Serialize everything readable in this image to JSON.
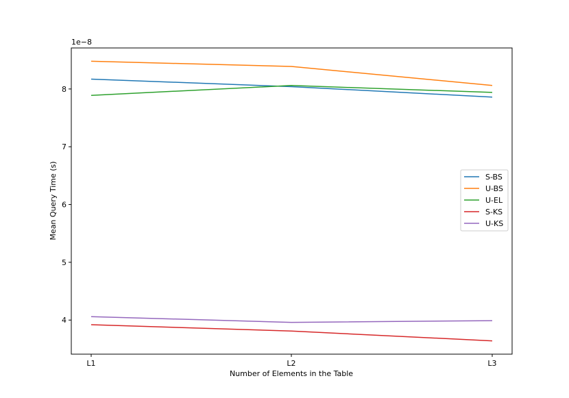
{
  "chart_data": {
    "type": "line",
    "categories": [
      "L1",
      "L2",
      "L3"
    ],
    "series": [
      {
        "name": "S-BS",
        "color": "#1f77b4",
        "values": [
          8.17,
          8.04,
          7.86
        ]
      },
      {
        "name": "U-BS",
        "color": "#ff7f0e",
        "values": [
          8.48,
          8.39,
          8.06
        ]
      },
      {
        "name": "U-EL",
        "color": "#2ca02c",
        "values": [
          7.89,
          8.06,
          7.94
        ]
      },
      {
        "name": "S-KS",
        "color": "#d62728",
        "values": [
          3.92,
          3.81,
          3.64
        ]
      },
      {
        "name": "U-KS",
        "color": "#9467bd",
        "values": [
          4.06,
          3.96,
          3.99
        ]
      }
    ],
    "xlabel": "Number of Elements in the Table",
    "ylabel": "Mean Query Time (s)",
    "y_offset_label": "1e−8",
    "yticks": [
      4,
      5,
      6,
      7,
      8
    ],
    "ylim": [
      3.41,
      8.71
    ],
    "grid": false,
    "legend_position": "center-right"
  }
}
